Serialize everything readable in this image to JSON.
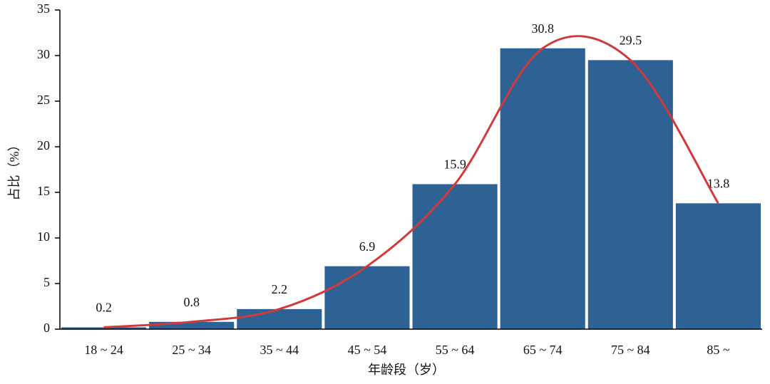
{
  "chart_data": {
    "type": "bar",
    "x_label": "年龄段（岁）",
    "y_label": "占比（%）",
    "categories": [
      "18 ~ 24",
      "25 ~ 34",
      "35 ~ 44",
      "45 ~ 54",
      "55 ~ 64",
      "65 ~ 74",
      "75 ~ 84",
      "85 ~"
    ],
    "values": [
      0.2,
      0.8,
      2.2,
      6.9,
      15.9,
      30.8,
      29.5,
      13.8
    ],
    "color": "#2e6295",
    "curve": true,
    "curve_color": "#d03a3a",
    "ylim": [
      0,
      35
    ],
    "yticks": [
      0,
      5,
      10,
      15,
      20,
      25,
      30,
      35
    ]
  }
}
